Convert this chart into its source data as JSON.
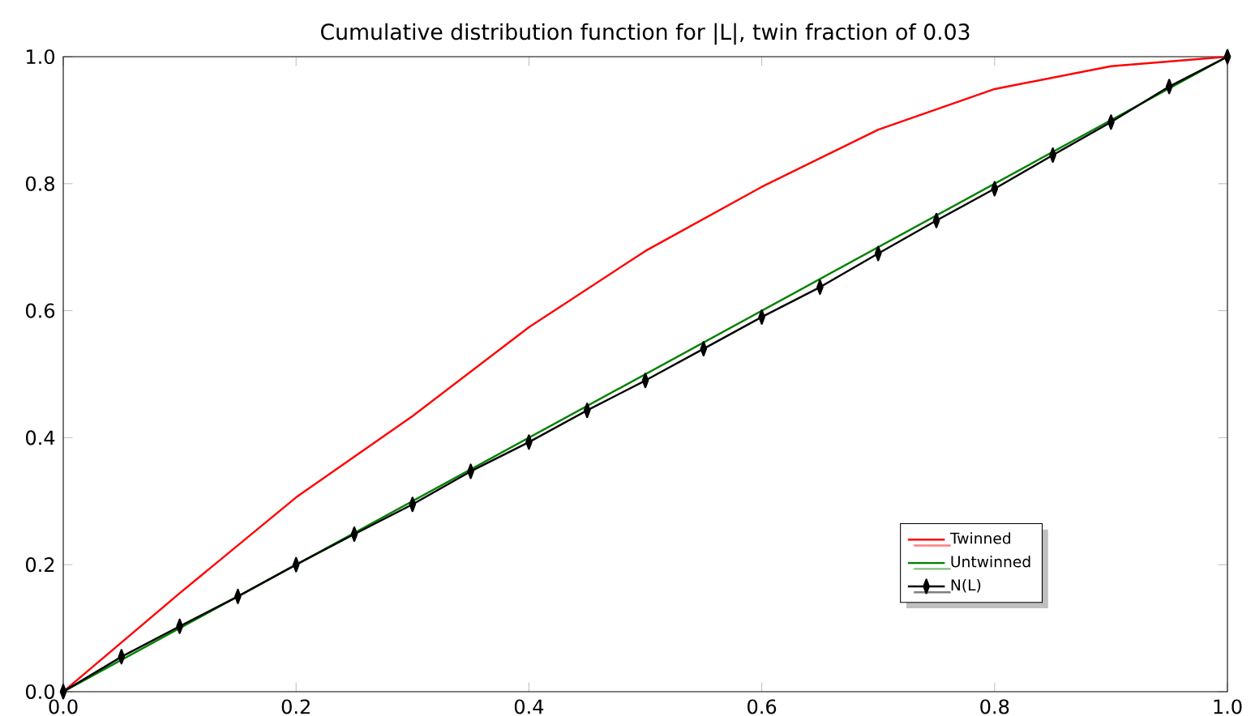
{
  "chart_data": {
    "type": "line",
    "title": "Cumulative distribution function for |L|, twin fraction of 0.03",
    "xlim": [
      0,
      1
    ],
    "ylim": [
      0,
      1
    ],
    "xticks": [
      {
        "value": 0,
        "label": "0.0"
      },
      0.2,
      0.4,
      0.6,
      0.8,
      {
        "value": 1,
        "label": "1.0"
      }
    ],
    "yticks": [
      {
        "value": 0,
        "label": "0.0"
      },
      0.2,
      0.4,
      0.6,
      0.8,
      {
        "value": 1,
        "label": "1.0"
      }
    ],
    "grid": false,
    "legend": "bottom right",
    "series": [
      {
        "name": "Twinned",
        "color": "#ff0000",
        "marker": "none",
        "x": [
          0,
          0.1,
          0.2,
          0.3,
          0.4,
          0.5,
          0.6,
          0.7,
          0.8,
          0.9,
          1
        ],
        "values": [
          0,
          0.155,
          0.306,
          0.434,
          0.574,
          0.694,
          0.795,
          0.885,
          0.949,
          0.985,
          1
        ]
      },
      {
        "name": "Untwinned",
        "color": "#008000",
        "marker": "none",
        "x": [
          0,
          1
        ],
        "values": [
          0,
          1
        ]
      },
      {
        "name": "N(L)",
        "color": "#000000",
        "marker": "diamond",
        "x": [
          0,
          0.05,
          0.1,
          0.15,
          0.2,
          0.25,
          0.3,
          0.35,
          0.4,
          0.45,
          0.5,
          0.55,
          0.6,
          0.65,
          0.7,
          0.75,
          0.8,
          0.85,
          0.9,
          0.95,
          1
        ],
        "values": [
          0,
          0.055,
          0.103,
          0.15,
          0.2,
          0.248,
          0.295,
          0.347,
          0.393,
          0.443,
          0.49,
          0.54,
          0.59,
          0.637,
          0.69,
          0.742,
          0.792,
          0.845,
          0.897,
          0.953,
          1
        ]
      }
    ]
  }
}
